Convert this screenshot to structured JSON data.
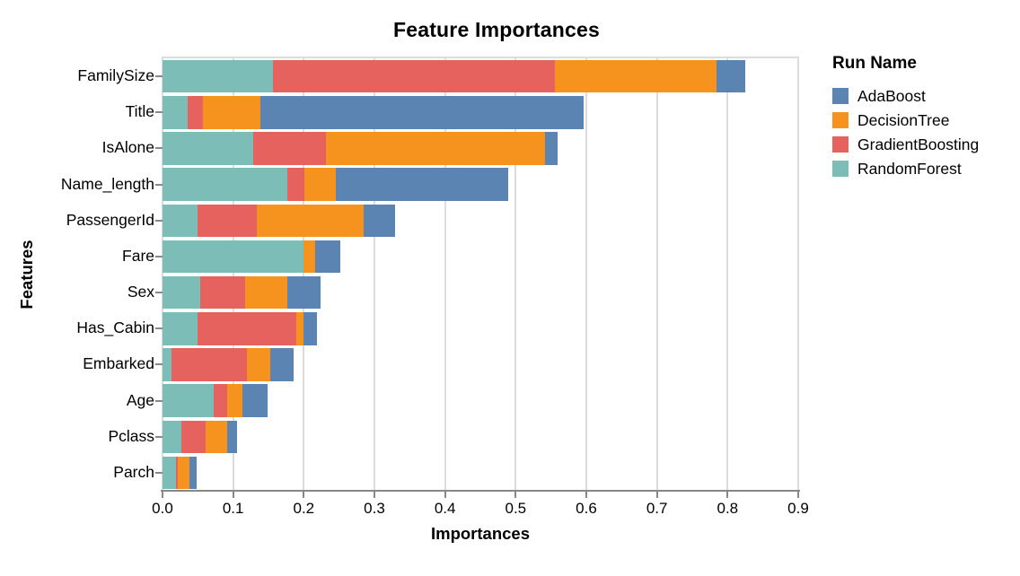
{
  "title": "Feature Importances",
  "x_axis": {
    "label": "Importances",
    "tick_labels": [
      "0.0",
      "0.1",
      "0.2",
      "0.3",
      "0.4",
      "0.5",
      "0.6",
      "0.7",
      "0.8",
      "0.9"
    ]
  },
  "y_axis": {
    "label": "Features"
  },
  "legend": {
    "title": "Run Name",
    "items": [
      {
        "label": "AdaBoost",
        "color": "#5b84b2"
      },
      {
        "label": "DecisionTree",
        "color": "#f6921e"
      },
      {
        "label": "GradientBoosting",
        "color": "#e5625e"
      },
      {
        "label": "RandomForest",
        "color": "#7dbdb8"
      }
    ]
  },
  "chart_data": {
    "type": "bar",
    "orientation": "horizontal",
    "stacked": true,
    "grid": true,
    "legend_position": "right",
    "title": "Feature Importances",
    "xlabel": "Importances",
    "ylabel": "Features",
    "xlim": [
      0,
      0.9
    ],
    "categories": [
      "FamilySize",
      "Title",
      "IsAlone",
      "Name_length",
      "PassengerId",
      "Fare",
      "Sex",
      "Has_Cabin",
      "Embarked",
      "Age",
      "Pclass",
      "Parch"
    ],
    "series": [
      {
        "name": "RandomForest",
        "color": "#7dbdb8",
        "values": [
          0.156,
          0.036,
          0.129,
          0.177,
          0.05,
          0.199,
          0.054,
          0.05,
          0.013,
          0.072,
          0.027,
          0.019
        ]
      },
      {
        "name": "GradientBoosting",
        "color": "#e5625e",
        "values": [
          0.4,
          0.021,
          0.102,
          0.024,
          0.083,
          0.0,
          0.063,
          0.14,
          0.107,
          0.02,
          0.034,
          0.003
        ]
      },
      {
        "name": "DecisionTree",
        "color": "#f6921e",
        "values": [
          0.228,
          0.082,
          0.31,
          0.044,
          0.152,
          0.017,
          0.06,
          0.01,
          0.033,
          0.021,
          0.03,
          0.016
        ]
      },
      {
        "name": "AdaBoost",
        "color": "#5b84b2",
        "values": [
          0.041,
          0.457,
          0.018,
          0.244,
          0.044,
          0.036,
          0.047,
          0.019,
          0.032,
          0.036,
          0.015,
          0.01
        ]
      }
    ]
  }
}
